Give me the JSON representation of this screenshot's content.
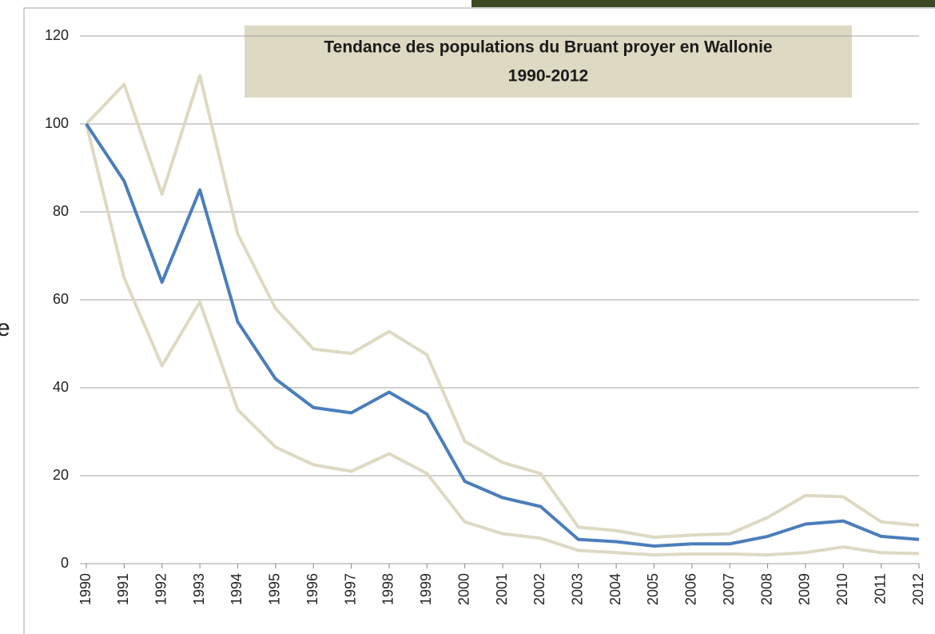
{
  "chart_data": {
    "type": "line",
    "title": [
      "Tendance des populations du Bruant proyer en Wallonie",
      "1990-2012"
    ],
    "side_text": "e",
    "categories": [
      "1990",
      "1991",
      "1992",
      "1993",
      "1994",
      "1995",
      "1996",
      "1997",
      "1998",
      "1999",
      "2000",
      "2001",
      "2002",
      "2003",
      "2004",
      "2005",
      "2006",
      "2007",
      "2008",
      "2009",
      "2010",
      "2011",
      "2012"
    ],
    "series": [
      {
        "color": "#ddd9c3",
        "values": [
          100,
          109,
          84,
          111,
          75,
          58,
          48.8,
          47.8,
          52.8,
          47.5,
          27.8,
          23,
          20.5,
          8.3,
          7.5,
          6,
          6.5,
          6.8,
          10.5,
          15.5,
          15.2,
          9.5,
          8.7
        ]
      },
      {
        "color": "#ddd9c3",
        "values": [
          100,
          65,
          45,
          59.5,
          35,
          26.5,
          22.5,
          21,
          25,
          20.5,
          9.5,
          6.8,
          5.8,
          3,
          2.5,
          2,
          2.2,
          2.2,
          2,
          2.5,
          3.8,
          2.5,
          2.3
        ]
      },
      {
        "color": "#4a7ebb",
        "values": [
          100,
          87,
          64,
          85,
          55,
          42,
          35.5,
          34.3,
          39,
          34,
          18.7,
          15,
          13,
          5.5,
          5,
          4,
          4.5,
          4.5,
          6.2,
          9,
          9.7,
          6.2,
          5.5
        ]
      }
    ],
    "ylim": [
      0,
      120
    ],
    "yticks": [
      0,
      20,
      40,
      60,
      80,
      100,
      120
    ],
    "grid": true
  }
}
